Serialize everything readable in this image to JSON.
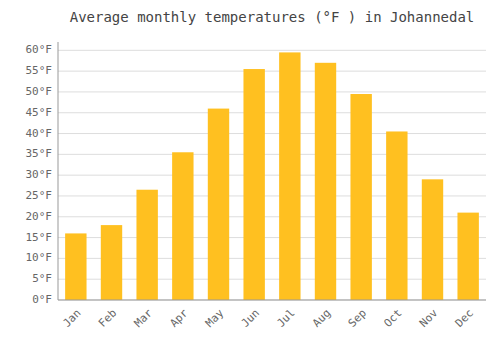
{
  "chart_data": {
    "type": "bar",
    "title": "Average monthly temperatures (°F ) in Johannedal",
    "categories": [
      "Jan",
      "Feb",
      "Mar",
      "Apr",
      "May",
      "Jun",
      "Jul",
      "Aug",
      "Sep",
      "Oct",
      "Nov",
      "Dec"
    ],
    "values": [
      16,
      18,
      26.5,
      35.5,
      46,
      55.5,
      59.5,
      57,
      49.5,
      40.5,
      29,
      21
    ],
    "color": "#FFC020",
    "ylim": [
      0,
      62
    ],
    "yticks": [
      {
        "value": 0,
        "label": "0°F"
      },
      {
        "value": 5,
        "label": "5°F"
      },
      {
        "value": 10,
        "label": "10°F"
      },
      {
        "value": 15,
        "label": "15°F"
      },
      {
        "value": 20,
        "label": "20°F"
      },
      {
        "value": 25,
        "label": "25°F"
      },
      {
        "value": 30,
        "label": "30°F"
      },
      {
        "value": 35,
        "label": "35°F"
      },
      {
        "value": 40,
        "label": "40°F"
      },
      {
        "value": 45,
        "label": "45°F"
      },
      {
        "value": 50,
        "label": "50°F"
      },
      {
        "value": 55,
        "label": "55°F"
      },
      {
        "value": 60,
        "label": "60°F"
      }
    ],
    "grid": true
  }
}
